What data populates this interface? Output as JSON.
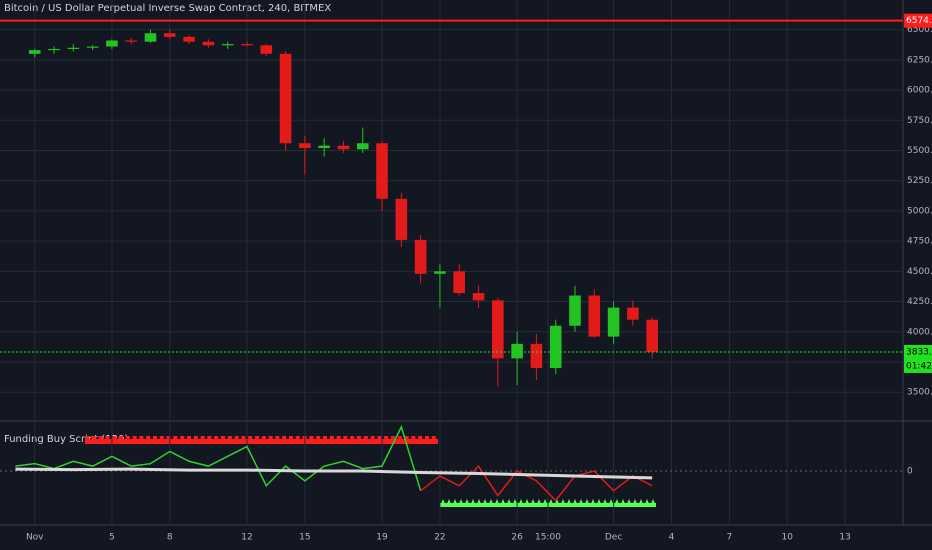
{
  "chart_data": [
    {
      "type": "candlestick",
      "title": "Bitcoin / US Dollar Perpetual Inverse Swap Contract, 240, BITMEX",
      "x": [
        1,
        2,
        3,
        4,
        5,
        6,
        7,
        8,
        9,
        10,
        11,
        12,
        13,
        14,
        15,
        16,
        17,
        18,
        19,
        20,
        21,
        22,
        23,
        24,
        25,
        26,
        27,
        28,
        29,
        30,
        31,
        32,
        33
      ],
      "open": [
        6300,
        6330,
        6340,
        6350,
        6360,
        6410,
        6400,
        6470,
        6440,
        6400,
        6370,
        6380,
        6370,
        6300,
        5560,
        5520,
        5540,
        5510,
        5560,
        5100,
        4760,
        4480,
        4500,
        4320,
        4260,
        3780,
        3900,
        3700,
        4050,
        4300,
        3960,
        4200,
        4100
      ],
      "high": [
        6340,
        6360,
        6380,
        6370,
        6420,
        6430,
        6500,
        6500,
        6450,
        6420,
        6400,
        6400,
        6380,
        6320,
        5620,
        5600,
        5580,
        5690,
        5580,
        5150,
        4800,
        4560,
        4560,
        4380,
        4280,
        4000,
        3980,
        4100,
        4380,
        4350,
        4250,
        4260,
        4120
      ],
      "low": [
        6270,
        6300,
        6320,
        6330,
        6340,
        6380,
        6390,
        6420,
        6380,
        6350,
        6340,
        6360,
        6280,
        5500,
        5300,
        5450,
        5480,
        5480,
        5000,
        4700,
        4400,
        4200,
        4300,
        4200,
        3550,
        3560,
        3600,
        3650,
        4000,
        3950,
        3900,
        4050,
        3780
      ],
      "close": [
        6330,
        6340,
        6350,
        6360,
        6410,
        6400,
        6470,
        6440,
        6400,
        6370,
        6380,
        6370,
        6300,
        5560,
        5520,
        5540,
        5510,
        5560,
        5100,
        4760,
        4480,
        4500,
        4320,
        4260,
        3780,
        3900,
        3700,
        4050,
        4300,
        3960,
        4200,
        4100,
        3833
      ],
      "up_color": "#22c322",
      "down_color": "#e31b1b",
      "xlim": [
        -0.8,
        46
      ],
      "ylim": [
        3270,
        6745
      ],
      "xticks": [
        {
          "value": 1,
          "label": "Nov"
        },
        5,
        8,
        12,
        15,
        19,
        22,
        26,
        {
          "value": 27.6,
          "label": "15:00"
        },
        {
          "value": 31,
          "label": "Dec"
        },
        {
          "value": 34,
          "label": "4"
        },
        {
          "value": 37,
          "label": "7"
        },
        {
          "value": 40,
          "label": "10"
        },
        {
          "value": 43,
          "label": "13"
        }
      ],
      "yticks": [
        {
          "value": 3500,
          "label": "3500.0"
        },
        {
          "value": 3750,
          "label": "3750.0"
        },
        {
          "value": 4000,
          "label": "4000.0"
        },
        {
          "value": 4250,
          "label": "4250.0"
        },
        {
          "value": 4500,
          "label": "4500.0"
        },
        {
          "value": 4750,
          "label": "4750.0"
        },
        {
          "value": 5000,
          "label": "5000.0"
        },
        {
          "value": 5250,
          "label": "5250.0"
        },
        {
          "value": 5500,
          "label": "5500.0"
        },
        {
          "value": 5750,
          "label": "5750.0"
        },
        {
          "value": 6000,
          "label": "6000.0"
        },
        {
          "value": 6250,
          "label": "6250.0"
        },
        {
          "value": 6500,
          "label": "6500.0"
        }
      ],
      "grid": true,
      "price_lines": [
        {
          "value": 6574.3,
          "label": "6574.3",
          "color": "#ff1c1c"
        },
        {
          "value": 3833,
          "label": "3833.0",
          "color": "#22e022"
        }
      ],
      "countdown": "01:42:53"
    },
    {
      "type": "line",
      "title": "Funding Buy Script (120)",
      "ylim": [
        -1.1,
        1.0
      ],
      "yticks": [
        0
      ],
      "series": [
        {
          "color": "#2fd12f",
          "x": [
            0,
            1,
            2,
            3,
            4,
            5,
            6,
            7,
            8,
            9,
            10,
            11,
            12,
            13,
            14,
            15,
            16,
            17,
            18,
            19,
            20,
            21
          ],
          "values": [
            0.1,
            0.15,
            0.05,
            0.2,
            0.1,
            0.3,
            0.1,
            0.15,
            0.4,
            0.2,
            0.1,
            0.3,
            0.5,
            -0.3,
            0.1,
            -0.2,
            0.1,
            0.2,
            0.05,
            0.1,
            0.9,
            -0.4
          ]
        },
        {
          "color": "#e31b1b",
          "x": [
            21,
            22,
            23,
            24,
            25,
            26,
            27,
            28,
            29,
            30,
            31,
            32,
            33
          ],
          "values": [
            -0.4,
            -0.1,
            -0.3,
            0.1,
            -0.5,
            0.0,
            -0.2,
            -0.6,
            -0.1,
            0.0,
            -0.4,
            -0.1,
            -0.3
          ]
        },
        {
          "color": "#d8d8d8",
          "x": [
            0,
            3,
            6,
            9,
            12,
            15,
            18,
            21,
            24,
            27,
            30,
            33
          ],
          "values": [
            0.04,
            0.03,
            0.04,
            0.02,
            0.02,
            0.0,
            0.0,
            -0.03,
            -0.05,
            -0.08,
            -0.11,
            -0.14
          ]
        }
      ]
    }
  ]
}
